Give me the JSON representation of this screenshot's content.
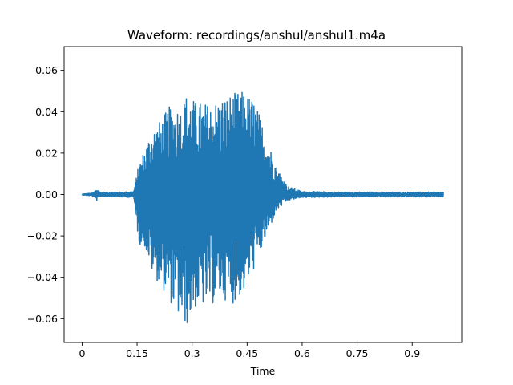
{
  "chart_data": {
    "type": "line",
    "title": "Waveform: recordings/anshul/anshul1.m4a",
    "xlabel": "Time",
    "ylabel": "",
    "xlim": [
      -0.049,
      1.035
    ],
    "ylim": [
      -0.0715,
      0.0715
    ],
    "x_ticks": [
      {
        "value": 0,
        "label": "0"
      },
      {
        "value": 0.15,
        "label": "0.15"
      },
      {
        "value": 0.3,
        "label": "0.3"
      },
      {
        "value": 0.45,
        "label": "0.45"
      },
      {
        "value": 0.6,
        "label": "0.6"
      },
      {
        "value": 0.75,
        "label": "0.75"
      },
      {
        "value": 0.9,
        "label": "0.9"
      }
    ],
    "y_ticks": [
      {
        "value": 0.06,
        "label": "0.06"
      },
      {
        "value": 0.04,
        "label": "0.04"
      },
      {
        "value": 0.02,
        "label": "0.02"
      },
      {
        "value": 0.0,
        "label": "0.00"
      },
      {
        "value": -0.02,
        "label": "−0.02"
      },
      {
        "value": -0.04,
        "label": "−0.04"
      },
      {
        "value": -0.06,
        "label": "−0.06"
      }
    ],
    "grid": false,
    "series": [
      {
        "color": "#1f77b4",
        "x_range": [
          0,
          0.985
        ],
        "envelope": [
          {
            "x": 0.0,
            "max": 0.0002,
            "min": -0.0002
          },
          {
            "x": 0.03,
            "max": 0.0008,
            "min": -0.0008
          },
          {
            "x": 0.04,
            "max": 0.003,
            "min": -0.003
          },
          {
            "x": 0.05,
            "max": 0.001,
            "min": -0.001
          },
          {
            "x": 0.1,
            "max": 0.0012,
            "min": -0.0012
          },
          {
            "x": 0.14,
            "max": 0.0015,
            "min": -0.0015
          },
          {
            "x": 0.155,
            "max": 0.015,
            "min": -0.024
          },
          {
            "x": 0.17,
            "max": 0.022,
            "min": -0.025
          },
          {
            "x": 0.19,
            "max": 0.032,
            "min": -0.038
          },
          {
            "x": 0.21,
            "max": 0.035,
            "min": -0.043
          },
          {
            "x": 0.24,
            "max": 0.043,
            "min": -0.052
          },
          {
            "x": 0.27,
            "max": 0.043,
            "min": -0.062
          },
          {
            "x": 0.285,
            "max": 0.049,
            "min": -0.064
          },
          {
            "x": 0.31,
            "max": 0.045,
            "min": -0.055
          },
          {
            "x": 0.35,
            "max": 0.044,
            "min": -0.054
          },
          {
            "x": 0.38,
            "max": 0.047,
            "min": -0.05
          },
          {
            "x": 0.41,
            "max": 0.049,
            "min": -0.053
          },
          {
            "x": 0.44,
            "max": 0.05,
            "min": -0.048
          },
          {
            "x": 0.47,
            "max": 0.046,
            "min": -0.036
          },
          {
            "x": 0.5,
            "max": 0.03,
            "min": -0.022
          },
          {
            "x": 0.53,
            "max": 0.014,
            "min": -0.008
          },
          {
            "x": 0.56,
            "max": 0.004,
            "min": -0.003
          },
          {
            "x": 0.6,
            "max": 0.0015,
            "min": -0.0015
          },
          {
            "x": 0.7,
            "max": 0.0012,
            "min": -0.0012
          },
          {
            "x": 0.985,
            "max": 0.0012,
            "min": -0.0012
          }
        ]
      }
    ]
  }
}
